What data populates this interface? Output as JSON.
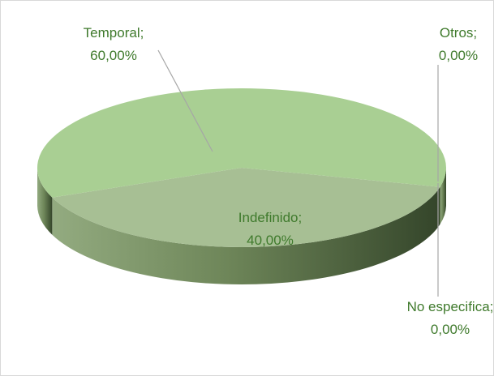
{
  "chart_data": {
    "type": "pie",
    "three_d": true,
    "categories": [
      "Indefinido",
      "Temporal",
      "Otros",
      "No especifica"
    ],
    "values": [
      40,
      60,
      0,
      0
    ],
    "value_labels": [
      "40,00%",
      "60,00%",
      "0,00%",
      "0,00%"
    ],
    "label_separator": ";",
    "colors": [
      "#a7bf94",
      "#a9cf93",
      "#9fc486",
      "#8fb377"
    ]
  }
}
